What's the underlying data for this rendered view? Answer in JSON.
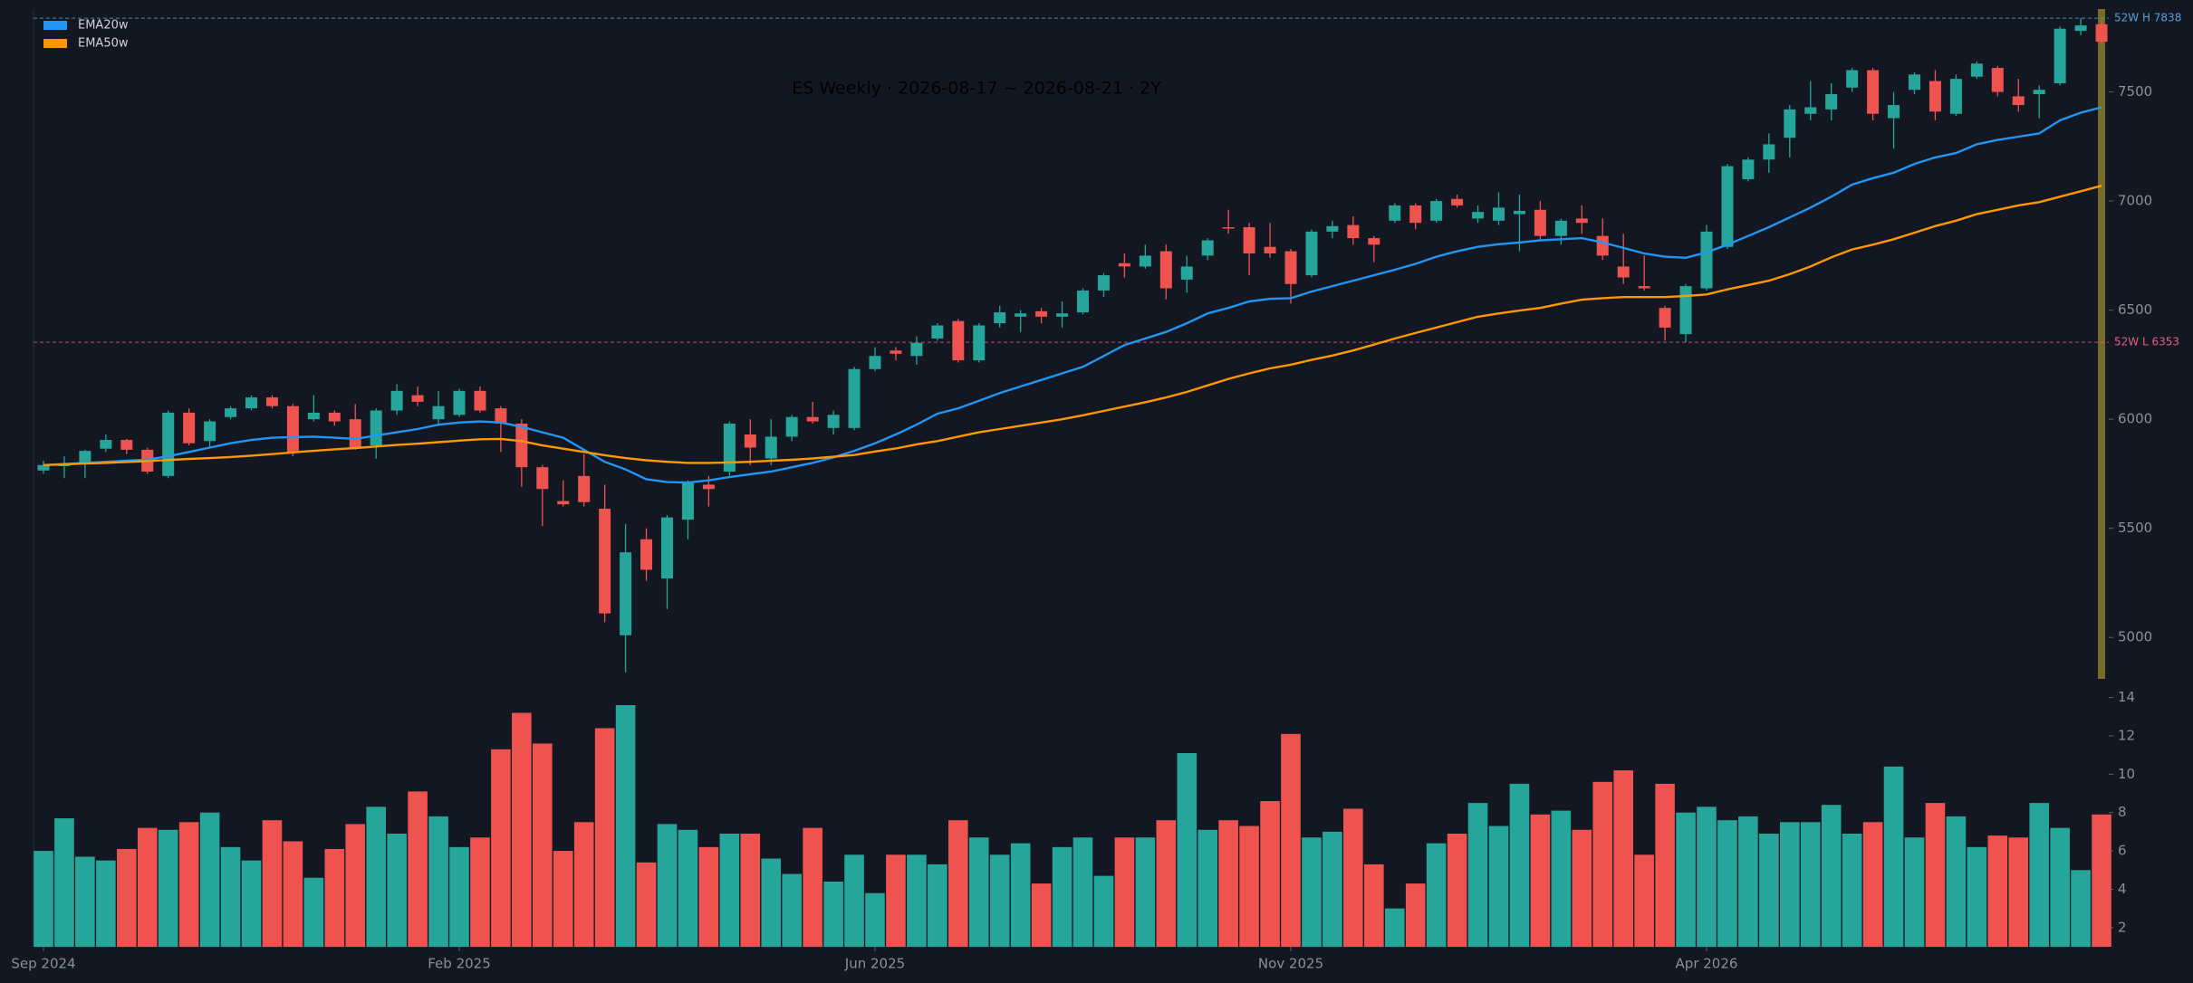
{
  "chart_data": {
    "type": "candlestick",
    "title": "ES Weekly · 2026-08-17 ~ 2026-08-21 · 2Y",
    "categories": [
      "Sep 2024",
      null,
      null,
      null,
      null,
      null,
      null,
      null,
      null,
      null,
      null,
      null,
      null,
      null,
      null,
      null,
      null,
      null,
      null,
      null,
      "Feb 2025",
      null,
      null,
      null,
      null,
      null,
      null,
      null,
      null,
      null,
      null,
      null,
      null,
      null,
      null,
      null,
      null,
      null,
      null,
      null,
      "Jun 2025",
      null,
      null,
      null,
      null,
      null,
      null,
      null,
      null,
      null,
      null,
      null,
      null,
      null,
      null,
      null,
      null,
      null,
      null,
      null,
      "Nov 2025",
      null,
      null,
      null,
      null,
      null,
      null,
      null,
      null,
      null,
      null,
      null,
      null,
      null,
      null,
      null,
      null,
      null,
      null,
      null,
      "Apr 2026",
      null,
      null,
      null,
      null,
      null,
      null,
      null,
      null,
      null,
      null,
      null,
      null,
      null,
      null,
      null,
      null,
      null,
      null,
      null
    ],
    "open": [
      5765,
      5785,
      5800,
      5865,
      5905,
      5860,
      5740,
      6030,
      5900,
      6010,
      6050,
      6100,
      6060,
      6000,
      6030,
      6000,
      5880,
      6040,
      6110,
      6000,
      6020,
      6130,
      6050,
      5980,
      5780,
      5625,
      5740,
      5590,
      5010,
      5450,
      5270,
      5540,
      5700,
      5760,
      5930,
      5820,
      5920,
      6010,
      5960,
      5960,
      6230,
      6315,
      6290,
      6370,
      6450,
      6270,
      6440,
      6470,
      6495,
      6470,
      6490,
      6590,
      6715,
      6700,
      6770,
      6640,
      6750,
      6880,
      6880,
      6790,
      6770,
      6660,
      6860,
      6890,
      6830,
      6910,
      6980,
      6910,
      7010,
      6920,
      6910,
      6940,
      6960,
      6840,
      6920,
      6840,
      6700,
      6610,
      6510,
      6390,
      6600,
      6790,
      7100,
      7190,
      7290,
      7400,
      7420,
      7520,
      7600,
      7380,
      7510,
      7550,
      7400,
      7570,
      7610,
      7480,
      7490,
      7540,
      7780,
      7810
    ],
    "high": [
      5810,
      5830,
      5860,
      5930,
      5910,
      5870,
      6040,
      6050,
      6000,
      6060,
      6110,
      6110,
      6070,
      6110,
      6040,
      6070,
      6050,
      6160,
      6150,
      6130,
      6140,
      6150,
      6060,
      6000,
      5790,
      5720,
      5840,
      5700,
      5520,
      5500,
      5560,
      5720,
      5740,
      5990,
      6000,
      6000,
      6020,
      6080,
      6040,
      6240,
      6330,
      6330,
      6380,
      6440,
      6460,
      6440,
      6520,
      6500,
      6510,
      6540,
      6600,
      6670,
      6760,
      6800,
      6800,
      6750,
      6830,
      6960,
      6900,
      6900,
      6780,
      6870,
      6910,
      6930,
      6840,
      6990,
      6990,
      7010,
      7030,
      6980,
      7040,
      7030,
      7000,
      6920,
      6980,
      6920,
      6850,
      6750,
      6520,
      6620,
      6890,
      7170,
      7200,
      7310,
      7440,
      7550,
      7540,
      7610,
      7610,
      7500,
      7590,
      7600,
      7580,
      7640,
      7620,
      7560,
      7530,
      7800,
      7838,
      7830
    ],
    "low": [
      5750,
      5730,
      5730,
      5850,
      5840,
      5750,
      5730,
      5880,
      5870,
      6000,
      6040,
      6050,
      5830,
      5990,
      5970,
      5860,
      5820,
      6020,
      6060,
      5980,
      6010,
      6030,
      5850,
      5690,
      5510,
      5600,
      5600,
      5070,
      4840,
      5260,
      5130,
      5450,
      5600,
      5740,
      5790,
      5790,
      5900,
      5980,
      5930,
      5950,
      6220,
      6270,
      6250,
      6360,
      6260,
      6260,
      6420,
      6400,
      6440,
      6420,
      6480,
      6560,
      6650,
      6690,
      6550,
      6580,
      6730,
      6850,
      6660,
      6740,
      6530,
      6650,
      6830,
      6800,
      6720,
      6900,
      6870,
      6900,
      6970,
      6900,
      6890,
      6770,
      6820,
      6800,
      6850,
      6730,
      6620,
      6590,
      6360,
      6353,
      6590,
      6780,
      7090,
      7130,
      7200,
      7370,
      7370,
      7500,
      7370,
      7240,
      7490,
      7370,
      7390,
      7560,
      7480,
      7410,
      7380,
      7530,
      7760,
      7720
    ],
    "close": [
      5790,
      5795,
      5855,
      5905,
      5860,
      5760,
      6030,
      5890,
      5990,
      6050,
      6100,
      6060,
      5850,
      6030,
      5990,
      5870,
      6040,
      6130,
      6080,
      6060,
      6130,
      6040,
      5980,
      5780,
      5680,
      5610,
      5620,
      5110,
      5390,
      5310,
      5550,
      5710,
      5680,
      5980,
      5870,
      5920,
      6010,
      5990,
      6020,
      6230,
      6290,
      6300,
      6350,
      6430,
      6270,
      6430,
      6490,
      6485,
      6470,
      6485,
      6590,
      6660,
      6700,
      6750,
      6600,
      6700,
      6820,
      6875,
      6760,
      6760,
      6620,
      6860,
      6885,
      6830,
      6800,
      6980,
      6900,
      7000,
      6980,
      6950,
      6970,
      6955,
      6840,
      6910,
      6900,
      6750,
      6650,
      6600,
      6420,
      6610,
      6860,
      7160,
      7190,
      7260,
      7420,
      7430,
      7490,
      7600,
      7400,
      7440,
      7580,
      7410,
      7560,
      7630,
      7500,
      7440,
      7510,
      7790,
      7805,
      7730
    ],
    "up_color": "#26a69a",
    "down_color": "#ef5350",
    "ylim": [
      4810,
      7880
    ],
    "yticks": [
      5000,
      5500,
      6000,
      6500,
      7000,
      7500
    ],
    "legend": "upper left",
    "series": [
      {
        "name": "EMA20w",
        "color": "#2196f3",
        "values": [
          5790,
          5795,
          5800,
          5805,
          5810,
          5815,
          5830,
          5850,
          5870,
          5890,
          5905,
          5915,
          5918,
          5920,
          5915,
          5910,
          5925,
          5940,
          5955,
          5975,
          5985,
          5990,
          5985,
          5965,
          5940,
          5915,
          5860,
          5805,
          5770,
          5725,
          5712,
          5710,
          5720,
          5735,
          5748,
          5760,
          5780,
          5800,
          5825,
          5855,
          5890,
          5930,
          5975,
          6025,
          6050,
          6085,
          6120,
          6150,
          6180,
          6210,
          6240,
          6290,
          6340,
          6370,
          6400,
          6440,
          6485,
          6510,
          6540,
          6552,
          6555,
          6585,
          6610,
          6635,
          6660,
          6685,
          6712,
          6745,
          6770,
          6790,
          6802,
          6810,
          6820,
          6825,
          6830,
          6810,
          6785,
          6760,
          6745,
          6740,
          6765,
          6800,
          6840,
          6880,
          6925,
          6970,
          7020,
          7075,
          7105,
          7130,
          7170,
          7200,
          7220,
          7260,
          7280,
          7295,
          7310,
          7370,
          7405,
          7430
        ]
      },
      {
        "name": "EMA50w",
        "color": "#ff9800",
        "values": [
          5790,
          5793,
          5797,
          5800,
          5804,
          5808,
          5813,
          5818,
          5822,
          5827,
          5833,
          5840,
          5848,
          5855,
          5862,
          5868,
          5875,
          5882,
          5888,
          5895,
          5902,
          5908,
          5910,
          5900,
          5880,
          5865,
          5850,
          5835,
          5822,
          5812,
          5805,
          5800,
          5800,
          5802,
          5805,
          5810,
          5814,
          5820,
          5828,
          5836,
          5852,
          5866,
          5885,
          5900,
          5920,
          5940,
          5955,
          5970,
          5985,
          6000,
          6018,
          6038,
          6058,
          6078,
          6100,
          6125,
          6155,
          6185,
          6210,
          6233,
          6250,
          6272,
          6292,
          6315,
          6342,
          6370,
          6395,
          6420,
          6445,
          6470,
          6485,
          6498,
          6510,
          6530,
          6548,
          6555,
          6560,
          6560,
          6560,
          6565,
          6572,
          6595,
          6615,
          6635,
          6665,
          6700,
          6742,
          6778,
          6800,
          6825,
          6855,
          6885,
          6910,
          6940,
          6960,
          6980,
          6995,
          7020,
          7045,
          7070
        ]
      }
    ],
    "hlines": [
      {
        "label": "52W H  7838",
        "value": 7838,
        "color": "#4fa3e0"
      },
      {
        "label": "52W L  6353",
        "value": 6353,
        "color": "#e0607e"
      }
    ],
    "volume": {
      "values": [
        6.0,
        7.7,
        5.7,
        5.5,
        6.1,
        7.2,
        7.1,
        7.5,
        8.0,
        6.2,
        5.5,
        7.6,
        6.5,
        4.6,
        6.1,
        7.4,
        8.3,
        6.9,
        9.1,
        7.8,
        6.2,
        6.7,
        11.3,
        13.2,
        11.6,
        6.0,
        7.5,
        12.4,
        13.6,
        5.4,
        7.4,
        7.1,
        6.2,
        6.9,
        6.9,
        5.6,
        4.8,
        7.2,
        4.4,
        5.8,
        3.8,
        5.8,
        5.8,
        5.3,
        7.6,
        6.7,
        5.8,
        6.4,
        4.3,
        6.2,
        6.7,
        4.7,
        6.7,
        6.7,
        7.6,
        11.1,
        7.1,
        7.6,
        7.3,
        8.6,
        12.1,
        6.7,
        7.0,
        8.2,
        5.3,
        3.0,
        4.3,
        6.4,
        6.9,
        8.5,
        7.3,
        9.5,
        7.9,
        8.1,
        7.1,
        9.6,
        10.2,
        5.8,
        9.5,
        8.0,
        8.3,
        7.6,
        7.8,
        6.9,
        7.5,
        7.5,
        8.4,
        6.9,
        7.5,
        10.4,
        6.7,
        8.5,
        7.8,
        6.2,
        6.8,
        6.7,
        8.5,
        7.2,
        5.0,
        7.9
      ],
      "ylim": [
        1,
        14.5
      ],
      "yticks": [
        2,
        4,
        6,
        8,
        10,
        12,
        14
      ]
    }
  }
}
